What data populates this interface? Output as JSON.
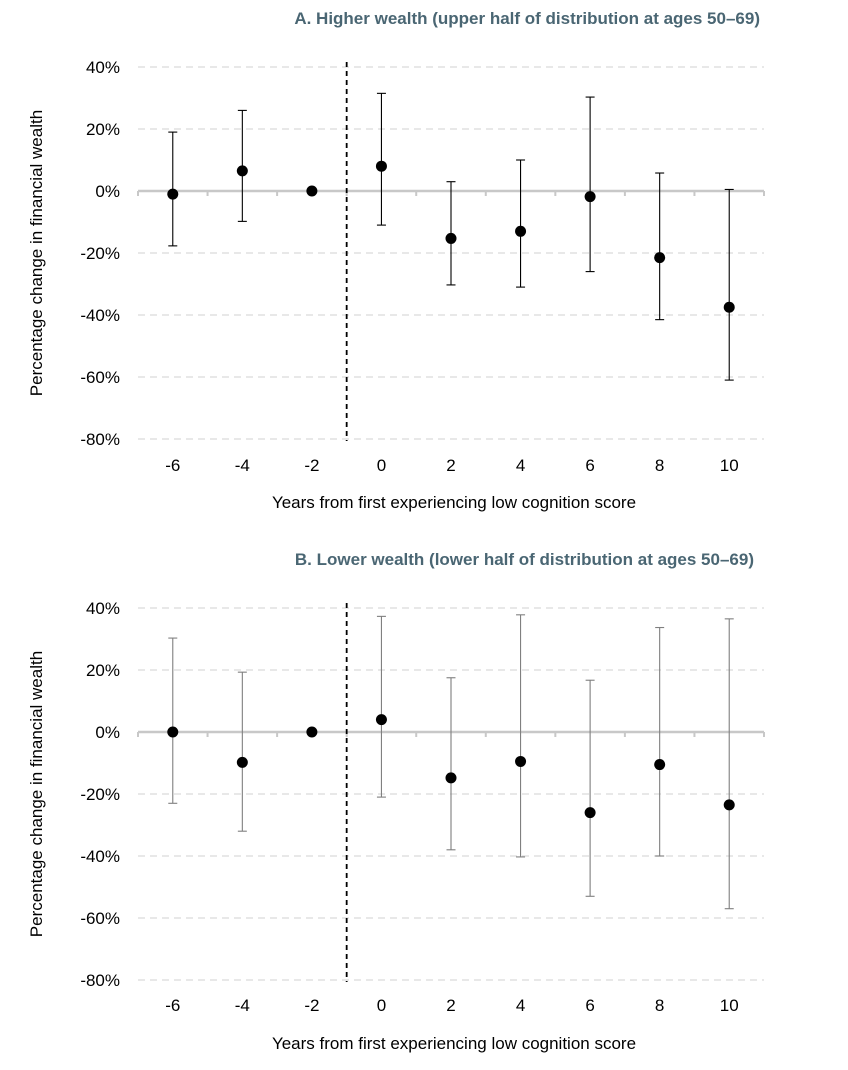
{
  "colors": {
    "title": "#4a6673",
    "grid": "#d9d9d9",
    "zero_line": "#c8c8c8",
    "point": "#000000",
    "error_bar_a": "#000000",
    "error_bar_b": "#7f7f7f",
    "reference_line": "#000000"
  },
  "chart_data": [
    {
      "type": "scatter",
      "title": "A. Higher wealth (upper half of distribution at ages 50–69)",
      "xlabel": "Years from first experiencing low cognition score",
      "ylabel": "Percentage change in financial wealth",
      "x": [
        -6,
        -4,
        -2,
        0,
        2,
        4,
        6,
        8,
        10
      ],
      "x_tick_labels": [
        "-6",
        "-4",
        "-2",
        "0",
        "2",
        "4",
        "6",
        "8",
        "10"
      ],
      "y_tick_labels": [
        "40%",
        "20%",
        "0%",
        "-20%",
        "-40%",
        "-60%",
        "-80%"
      ],
      "ylim": [
        -80,
        40
      ],
      "y_ticks": [
        40,
        20,
        0,
        -20,
        -40,
        -60,
        -80
      ],
      "y_unit": "percent",
      "estimate": [
        -1,
        6.5,
        0,
        8,
        -15.3,
        -13,
        -1.8,
        -21.5,
        -37.5
      ],
      "ci_lower": [
        -17.7,
        -9.8,
        null,
        -11,
        -30.3,
        -31,
        -26,
        -41.5,
        -61
      ],
      "ci_upper": [
        19,
        26,
        null,
        31.5,
        3,
        10,
        30.3,
        5.8,
        0.5
      ],
      "reference_line_x": -1,
      "grid": "horizontal dashed"
    },
    {
      "type": "scatter",
      "title": "B. Lower wealth (lower half of distribution at ages 50–69)",
      "xlabel": "Years from first experiencing low cognition score",
      "ylabel": "Percentage change in financial wealth",
      "x": [
        -6,
        -4,
        -2,
        0,
        2,
        4,
        6,
        8,
        10
      ],
      "x_tick_labels": [
        "-6",
        "-4",
        "-2",
        "0",
        "2",
        "4",
        "6",
        "8",
        "10"
      ],
      "y_tick_labels": [
        "40%",
        "20%",
        "0%",
        "-20%",
        "-40%",
        "-60%",
        "-80%"
      ],
      "ylim": [
        -80,
        40
      ],
      "y_ticks": [
        40,
        20,
        0,
        -20,
        -40,
        -60,
        -80
      ],
      "y_unit": "percent",
      "estimate": [
        0,
        -9.8,
        0,
        4,
        -14.8,
        -9.5,
        -26,
        -10.5,
        -23.5
      ],
      "ci_lower": [
        -23,
        -32,
        null,
        -21,
        -38,
        -40.3,
        -53,
        -40,
        -57
      ],
      "ci_upper": [
        30.3,
        19.3,
        null,
        37.3,
        17.5,
        37.8,
        16.7,
        33.7,
        36.5
      ],
      "reference_line_x": -1,
      "grid": "horizontal dashed"
    }
  ]
}
